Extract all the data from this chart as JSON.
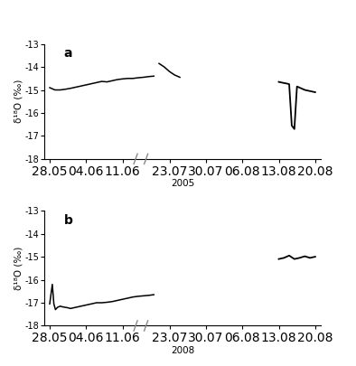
{
  "title_a": "a",
  "title_b": "b",
  "ylabel": "δ¹⁸O (‰)",
  "xlabel_a": "2005",
  "xlabel_b": "2008",
  "ylim": [
    -18,
    -13
  ],
  "yticks": [
    -18,
    -17,
    -16,
    -15,
    -14,
    -13
  ],
  "xtick_labels": [
    "28.05",
    "04.06",
    "11.06",
    "23.07",
    "30.07",
    "06.08",
    "13.08",
    "20.08"
  ],
  "xtick_pos": [
    0,
    7,
    14,
    23,
    30,
    37,
    44,
    51
  ],
  "xlim": [
    -1,
    52
  ],
  "break_x1": 16.5,
  "break_x2": 18.5,
  "panel_a_seg1_x": [
    0,
    1,
    2,
    3,
    4,
    5,
    6,
    7,
    8,
    9,
    10,
    11,
    12,
    13,
    14,
    15,
    16,
    17,
    18,
    19,
    20
  ],
  "panel_a_seg1_y": [
    -14.9,
    -15.0,
    -15.0,
    -14.97,
    -14.93,
    -14.88,
    -14.83,
    -14.78,
    -14.73,
    -14.68,
    -14.63,
    -14.65,
    -14.6,
    -14.55,
    -14.52,
    -14.5,
    -14.5,
    -14.47,
    -14.45,
    -14.42,
    -14.4
  ],
  "panel_a_seg2_x": [
    21,
    22,
    23,
    24,
    25
  ],
  "panel_a_seg2_y": [
    -13.85,
    -14.0,
    -14.2,
    -14.35,
    -14.45
  ],
  "panel_a_seg3_x": [
    44,
    45,
    45.5,
    46.0,
    46.5,
    47.0,
    47.5,
    48,
    49,
    50,
    51
  ],
  "panel_a_seg3_y": [
    -14.65,
    -14.7,
    -14.72,
    -14.75,
    -16.55,
    -16.7,
    -14.85,
    -14.9,
    -15.0,
    -15.05,
    -15.1
  ],
  "panel_b_seg1_x": [
    0,
    0.5,
    0.8,
    1.1,
    1.5,
    2,
    2.5,
    3,
    3.5,
    4,
    5,
    6,
    7,
    8,
    9,
    10,
    11,
    12,
    13,
    14,
    15,
    16,
    17,
    18,
    19,
    20
  ],
  "panel_b_seg1_y": [
    -17.05,
    -16.2,
    -17.05,
    -17.3,
    -17.2,
    -17.15,
    -17.18,
    -17.2,
    -17.22,
    -17.25,
    -17.2,
    -17.15,
    -17.1,
    -17.05,
    -17.0,
    -17.0,
    -16.98,
    -16.95,
    -16.9,
    -16.85,
    -16.8,
    -16.75,
    -16.72,
    -16.7,
    -16.68,
    -16.65
  ],
  "panel_b_seg2_x": [
    44,
    45,
    46,
    47,
    48,
    49,
    50,
    51
  ],
  "panel_b_seg2_y": [
    -15.1,
    -15.05,
    -14.95,
    -15.1,
    -15.05,
    -14.98,
    -15.05,
    -15.0
  ],
  "line_color": "#000000",
  "bg_color": "#ffffff",
  "tick_fontsize": 7,
  "label_fontsize": 7.5,
  "panel_label_fontsize": 10
}
